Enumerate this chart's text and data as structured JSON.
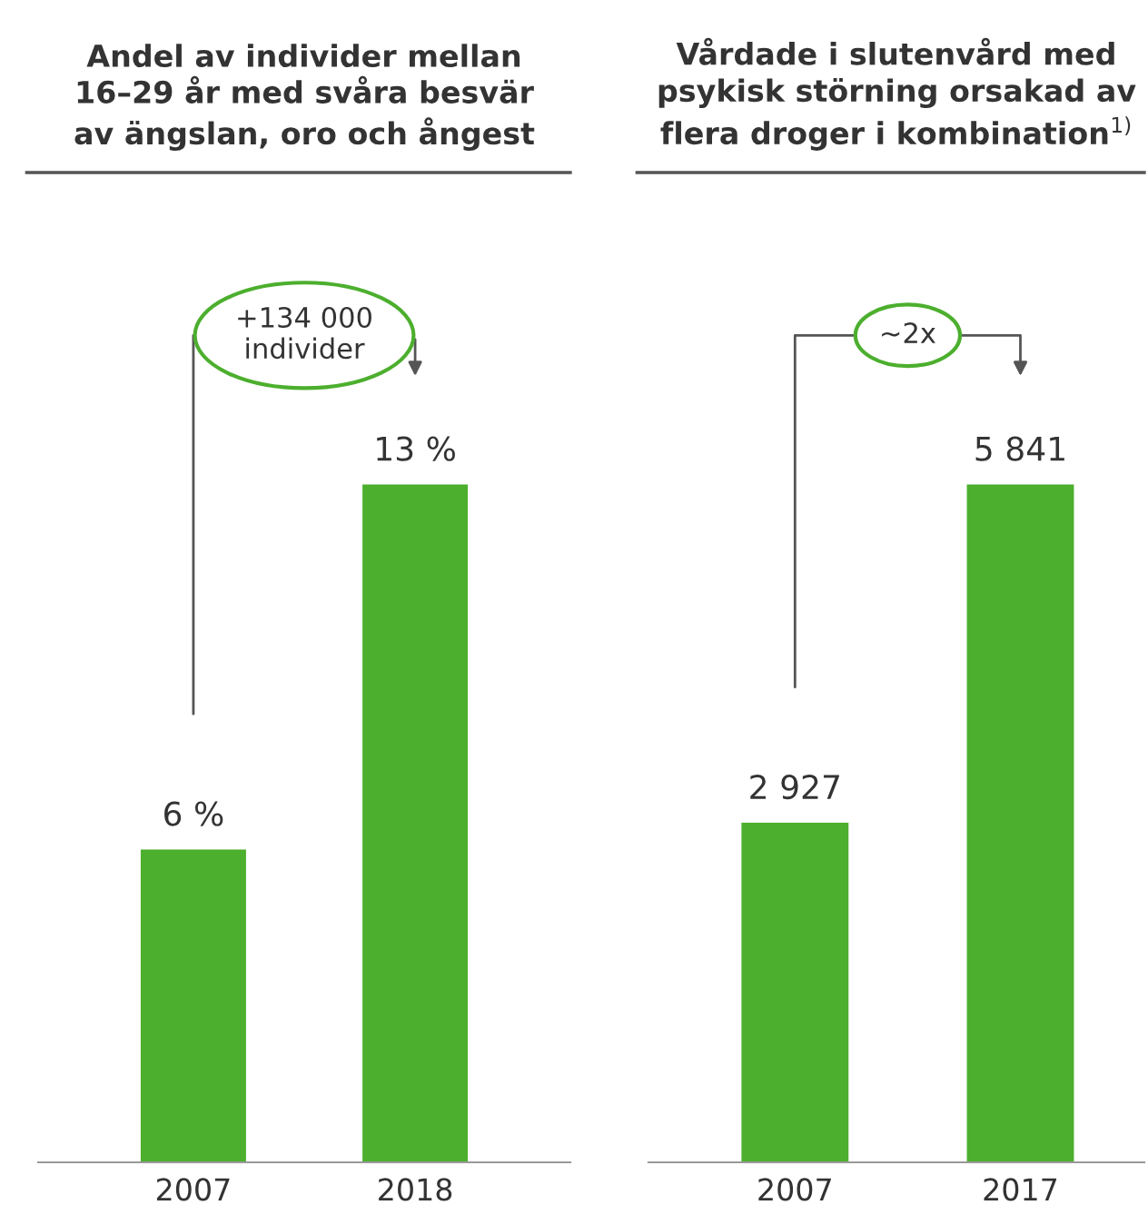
{
  "chart_data": [
    {
      "type": "bar",
      "title": "Andel av individer mellan\n16–29 år med svåra besvär\nav ängslan, oro och ångest",
      "categories": [
        "2007",
        "2018"
      ],
      "values": [
        6,
        13
      ],
      "value_labels": [
        "6 %",
        "13 %"
      ],
      "color": "#4caf2e",
      "tick_labels": "x",
      "grid": false,
      "legend": false,
      "annotations": [
        "+134 000\nindivider"
      ]
    },
    {
      "type": "bar",
      "title": "Vårdade i slutenvård med\npsykisk störning orsakad av\nflera droger i kombination$^{1)}$",
      "categories": [
        "2007",
        "2017"
      ],
      "values": [
        2927,
        5841
      ],
      "value_labels": [
        "2 927",
        "5 841"
      ],
      "color": "#4caf2e",
      "tick_labels": "x",
      "grid": false,
      "legend": false,
      "annotations": [
        "~2x"
      ]
    }
  ]
}
